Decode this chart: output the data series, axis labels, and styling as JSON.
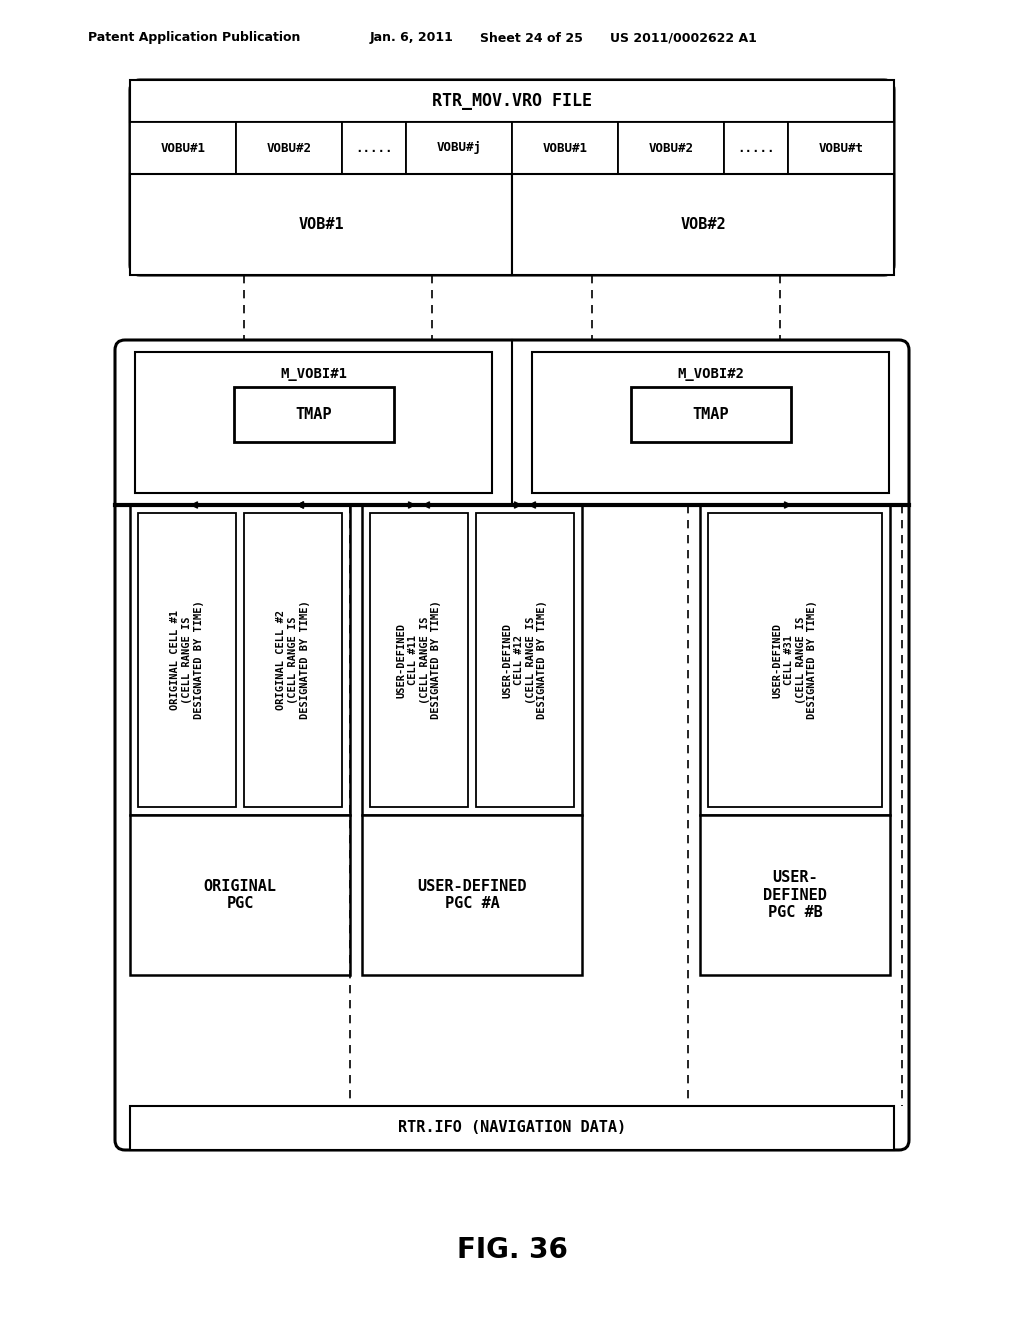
{
  "bg_color": "#ffffff",
  "header_text1": "Patent Application Publication",
  "header_text2": "Jan. 6, 2011",
  "header_text3": "Sheet 24 of 25",
  "header_text4": "US 2011/0002622 A1",
  "figure_label": "FIG. 36",
  "rtr_mov_title": "RTR_MOV.VRO FILE",
  "vobu_labels": [
    "VOBU#1",
    "VOBU#2",
    ".....",
    "VOBU#j",
    "VOBU#1",
    "VOBU#2",
    ".....",
    "VOBU#t"
  ],
  "vob_labels": [
    "VOB#1",
    "VOB#2"
  ],
  "mvob_labels": [
    "M_VOBI#1",
    "M_VOBI#2"
  ],
  "tmap_label": "TMAP",
  "cell_texts": [
    "ORIGINAL CELL #1\n(CELL RANGE IS\nDESIGNATED BY TIME)",
    "ORIGINAL CELL #2\n(CELL RANGE IS\nDESIGNATED BY TIME)",
    "USER-DEFINED\nCELL #11\n(CELL RANGE IS\nDESIGNATED BY TIME)",
    "USER-DEFINED\nCELL #12\n(CELL RANGE IS\nDESIGNATED BY TIME)",
    "USER-DEFINED\nCELL #31\n(CELL RANGE IS\nDESIGNATED BY TIME)"
  ],
  "pgc_texts": [
    "ORIGINAL\nPGC",
    "USER-DEFINED\nPGC #A",
    "USER-\nDEFINED\nPGC #B"
  ],
  "rtr_ifo_label": "RTR.IFO (NAVIGATION DATA)"
}
